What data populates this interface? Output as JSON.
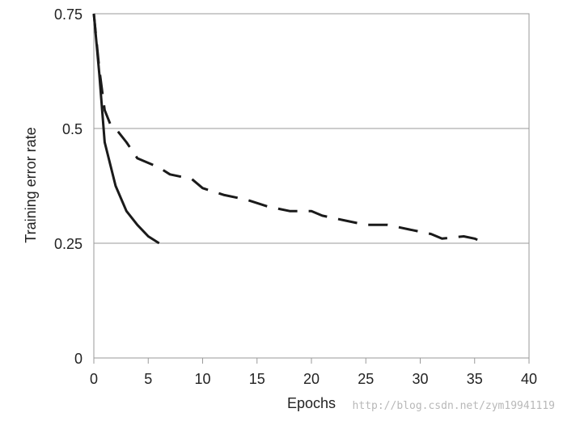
{
  "chart_data": {
    "type": "line",
    "title": "",
    "xlabel": "Epochs",
    "ylabel": "Training error rate",
    "xlim": [
      0,
      40
    ],
    "ylim": [
      0,
      0.75
    ],
    "x_ticks": [
      0,
      5,
      10,
      15,
      20,
      25,
      30,
      35,
      40
    ],
    "y_ticks": [
      0,
      0.25,
      0.5,
      0.75
    ],
    "x_tick_labels": [
      "0",
      "5",
      "10",
      "15",
      "20",
      "25",
      "30",
      "35",
      "40"
    ],
    "y_tick_labels": [
      "0",
      "0.25",
      "0.5",
      "0.75"
    ],
    "grid": "horizontal",
    "series": [
      {
        "style": "solid",
        "color": "#1a1a1a",
        "x": [
          0,
          0.5,
          1,
          2,
          3,
          4,
          5,
          6
        ],
        "y": [
          0.75,
          0.62,
          0.47,
          0.375,
          0.32,
          0.29,
          0.265,
          0.25
        ]
      },
      {
        "style": "dashed",
        "color": "#1a1a1a",
        "x": [
          0,
          0.5,
          1,
          1.5,
          2,
          3,
          4,
          6,
          7,
          9,
          10,
          12,
          14,
          16,
          18,
          20,
          21,
          23,
          25,
          27,
          29,
          31,
          32,
          34,
          35,
          36
        ],
        "y": [
          0.75,
          0.63,
          0.54,
          0.51,
          0.5,
          0.47,
          0.435,
          0.415,
          0.4,
          0.39,
          0.37,
          0.355,
          0.345,
          0.33,
          0.32,
          0.32,
          0.31,
          0.3,
          0.29,
          0.29,
          0.28,
          0.27,
          0.26,
          0.265,
          0.26,
          0.25
        ]
      }
    ]
  },
  "watermark": "http://blog.csdn.net/zym19941119"
}
